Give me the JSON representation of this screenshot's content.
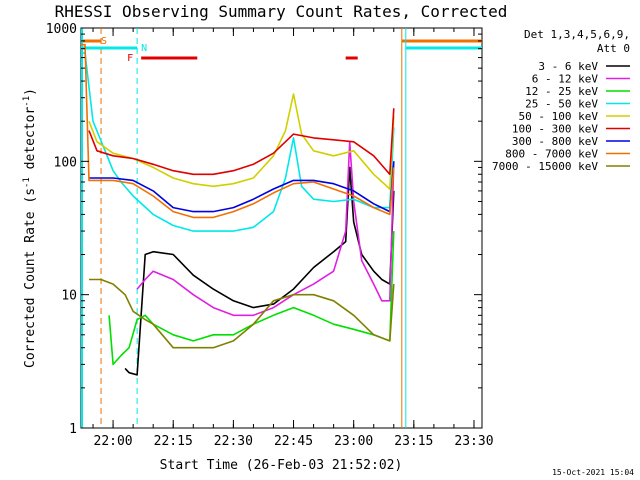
{
  "chart_data": {
    "type": "line",
    "title": "RHESSI Observing Summary Count Rates, Corrected",
    "xlabel": "Start Time (26-Feb-03 21:52:02)",
    "ylabel": "Corrected Count Rate (s",
    "ylabel_sup1": "-1",
    "ylabel_mid": " detector",
    "ylabel_sup2": "-1",
    "ylabel_end": ")",
    "y_scale": "log",
    "ylim": [
      1,
      1000
    ],
    "xlim": [
      "21:52",
      "23:32"
    ],
    "x_ticks": [
      "22:00",
      "22:15",
      "22:30",
      "22:45",
      "23:00",
      "23:15",
      "23:30"
    ],
    "y_ticks": [
      "1",
      "10",
      "100",
      "1000"
    ],
    "footer": "15-Oct-2021 15:04",
    "legend_header1": "Det 1,3,4,5,6,9,",
    "legend_header2": "Att 0",
    "legend_placement": "right",
    "series": [
      {
        "name": "3 - 6 keV",
        "color": "#000000",
        "x": [
          "22:03",
          "22:04",
          "22:06",
          "22:08",
          "22:10",
          "22:15",
          "22:20",
          "22:25",
          "22:30",
          "22:35",
          "22:40",
          "22:45",
          "22:50",
          "22:55",
          "22:58",
          "22:59",
          "23:00",
          "23:02",
          "23:05",
          "23:07",
          "23:09",
          "23:10"
        ],
        "y": [
          2.8,
          2.6,
          2.5,
          20,
          21,
          20,
          14,
          11,
          9,
          8,
          8.5,
          11,
          16,
          21,
          25,
          90,
          35,
          20,
          15,
          13,
          12,
          60
        ]
      },
      {
        "name": "6 - 12 keV",
        "color": "#e020e0",
        "x": [
          "22:06",
          "22:08",
          "22:10",
          "22:15",
          "22:20",
          "22:25",
          "22:30",
          "22:35",
          "22:40",
          "22:45",
          "22:50",
          "22:55",
          "22:58",
          "22:59",
          "23:00",
          "23:02",
          "23:05",
          "23:07",
          "23:09",
          "23:10"
        ],
        "y": [
          11,
          13,
          15,
          13,
          10,
          8,
          7,
          7,
          8,
          10,
          12,
          15,
          30,
          140,
          50,
          18,
          12,
          9,
          9,
          100
        ]
      },
      {
        "name": "12 - 25 keV",
        "color": "#00e000",
        "x": [
          "21:59",
          "22:00",
          "22:02",
          "22:04",
          "22:06",
          "22:08",
          "22:10",
          "22:15",
          "22:20",
          "22:25",
          "22:30",
          "22:35",
          "22:40",
          "22:45",
          "22:50",
          "22:55",
          "23:00",
          "23:05",
          "23:09",
          "23:10"
        ],
        "y": [
          7,
          3,
          3.5,
          4,
          6.5,
          7,
          6,
          5,
          4.5,
          5,
          5,
          6,
          7,
          8,
          7,
          6,
          5.5,
          5,
          4.5,
          30
        ]
      },
      {
        "name": "25 - 50 keV",
        "color": "#00e8e8",
        "x": [
          "21:52",
          "21:53",
          "21:55",
          "21:58",
          "22:00",
          "22:02",
          "22:05",
          "22:10",
          "22:15",
          "22:20",
          "22:25",
          "22:30",
          "22:35",
          "22:40",
          "22:43",
          "22:45",
          "22:47",
          "22:50",
          "22:55",
          "23:00",
          "23:05",
          "23:09",
          "23:10"
        ],
        "y": [
          650,
          650,
          200,
          120,
          85,
          70,
          55,
          40,
          33,
          30,
          30,
          30,
          32,
          42,
          75,
          150,
          65,
          52,
          50,
          52,
          45,
          45,
          180
        ]
      },
      {
        "name": "50 - 100 keV",
        "color": "#d0d000",
        "x": [
          "21:54",
          "21:56",
          "22:00",
          "22:05",
          "22:10",
          "22:15",
          "22:20",
          "22:25",
          "22:30",
          "22:35",
          "22:40",
          "22:43",
          "22:45",
          "22:47",
          "22:50",
          "22:55",
          "23:00",
          "23:05",
          "23:09",
          "23:10"
        ],
        "y": [
          200,
          140,
          115,
          105,
          90,
          75,
          68,
          65,
          68,
          75,
          110,
          170,
          320,
          160,
          120,
          110,
          120,
          80,
          62,
          220
        ]
      },
      {
        "name": "100 - 300 keV",
        "color": "#e00000",
        "x": [
          "21:54",
          "21:56",
          "22:00",
          "22:05",
          "22:10",
          "22:15",
          "22:20",
          "22:25",
          "22:30",
          "22:35",
          "22:40",
          "22:45",
          "22:50",
          "22:55",
          "23:00",
          "23:05",
          "23:09",
          "23:10"
        ],
        "y": [
          170,
          120,
          110,
          105,
          95,
          85,
          80,
          80,
          85,
          95,
          115,
          160,
          150,
          145,
          140,
          110,
          80,
          250
        ]
      },
      {
        "name": "300 - 800 keV",
        "color": "#0000e0",
        "x": [
          "21:54",
          "21:56",
          "22:00",
          "22:05",
          "22:10",
          "22:15",
          "22:20",
          "22:25",
          "22:30",
          "22:35",
          "22:40",
          "22:45",
          "22:50",
          "22:55",
          "23:00",
          "23:05",
          "23:09",
          "23:10"
        ],
        "y": [
          75,
          75,
          75,
          72,
          60,
          45,
          42,
          42,
          45,
          52,
          62,
          72,
          72,
          68,
          60,
          48,
          42,
          100
        ]
      },
      {
        "name": "800 - 7000 keV",
        "color": "#f07000",
        "x": [
          "21:52",
          "21:53",
          "21:54",
          "21:56",
          "22:00",
          "22:05",
          "22:10",
          "22:15",
          "22:20",
          "22:25",
          "22:30",
          "22:35",
          "22:40",
          "22:45",
          "22:50",
          "22:55",
          "23:00",
          "23:05",
          "23:09",
          "23:10"
        ],
        "y": [
          750,
          750,
          72,
          72,
          72,
          68,
          55,
          42,
          38,
          38,
          42,
          48,
          58,
          68,
          70,
          62,
          55,
          45,
          40,
          90
        ]
      },
      {
        "name": "7000 - 15000 keV",
        "color": "#808000",
        "x": [
          "21:54",
          "21:57",
          "22:00",
          "22:03",
          "22:05",
          "22:08",
          "22:10",
          "22:15",
          "22:20",
          "22:25",
          "22:30",
          "22:35",
          "22:40",
          "22:45",
          "22:50",
          "22:55",
          "23:00",
          "23:05",
          "23:09",
          "23:10"
        ],
        "y": [
          13,
          13,
          12,
          10,
          7.5,
          6.5,
          6,
          4,
          4,
          4,
          4.5,
          6,
          9,
          10,
          10,
          9,
          7,
          5,
          4.5,
          12
        ]
      }
    ],
    "annotations": {
      "s_label": "S",
      "n_label": "N",
      "f_label": "F",
      "flare_intervals": [
        [
          "22:07",
          "22:21"
        ],
        [
          "22:58",
          "23:01"
        ]
      ],
      "saa_intervals": [
        [
          "21:52",
          "21:57"
        ],
        [
          "23:12",
          "23:32"
        ]
      ],
      "night_intervals": [
        [
          "21:52",
          "22:06"
        ],
        [
          "23:13",
          "23:32"
        ]
      ]
    }
  }
}
